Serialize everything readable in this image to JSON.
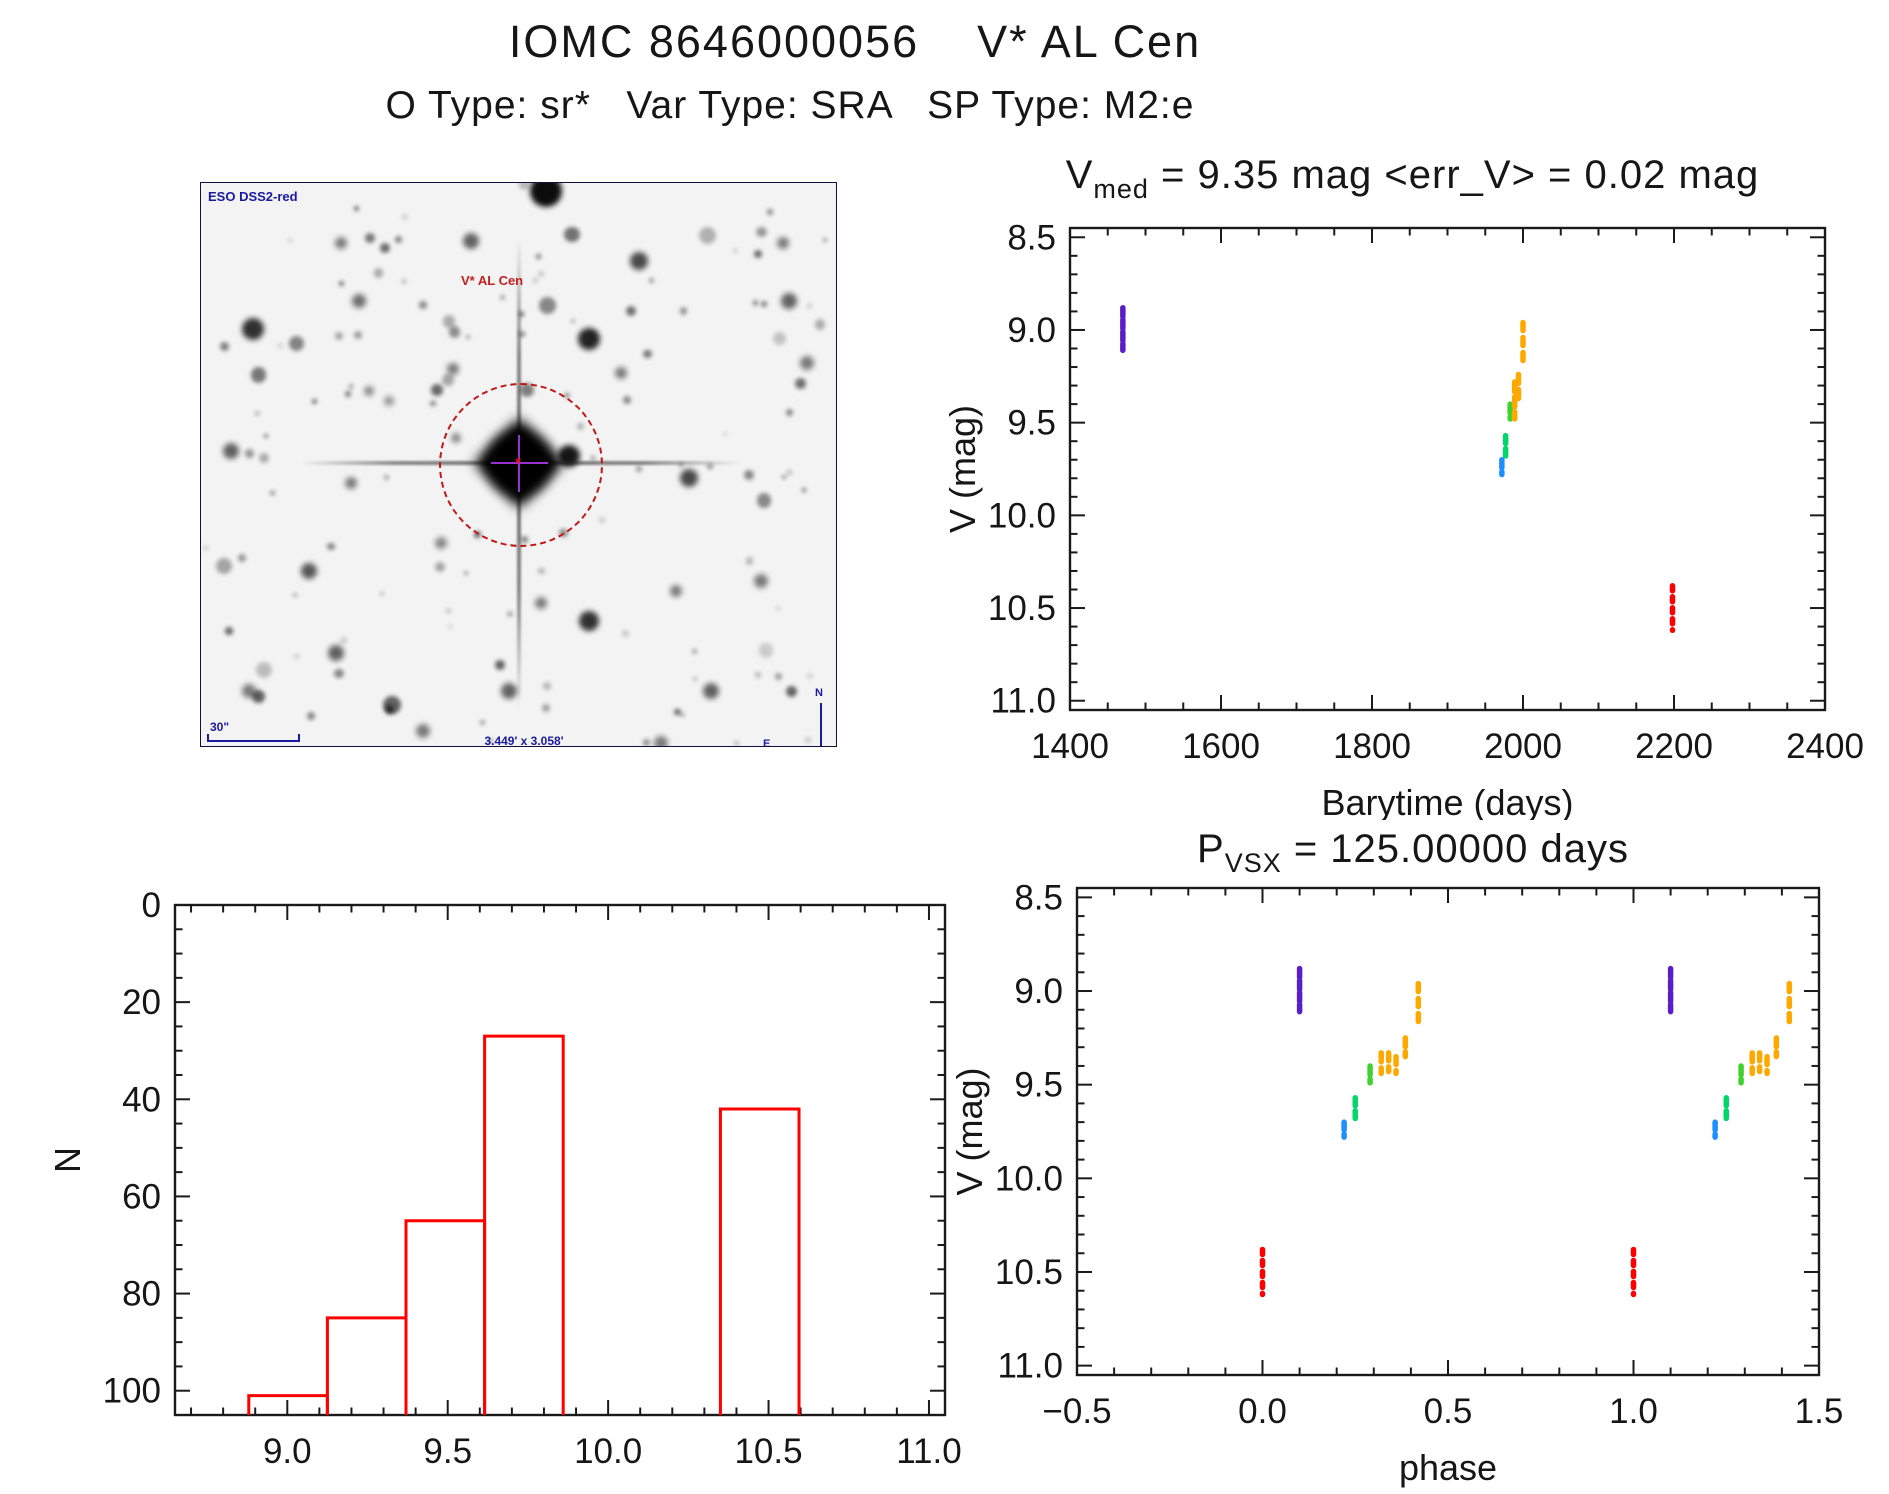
{
  "header": {
    "title": "IOMC 8646000056    V* AL Cen",
    "subtitle": "O Type: sr*   Var Type: SRA   SP Type: M2:e"
  },
  "colors": {
    "axis": "#1a1a1a",
    "red": "#ff0000",
    "purple": "#5a1ec8",
    "blue": "#1e8fff",
    "spring_green": "#00d66a",
    "lime_green": "#3fd22f",
    "orange": "#ffa800"
  },
  "star_image": {
    "survey_label": "ESO DSS2-red",
    "target_label": "V* AL Cen",
    "scale_label": "30\"",
    "size_label": "3.449' x 3.058'",
    "compass": {
      "north": "N",
      "east": "E"
    },
    "seed": 1337,
    "n_speckles": 120,
    "bright_stars": [
      [
        345,
        8,
        16,
        0.95
      ],
      [
        388,
        156,
        11,
        0.85
      ],
      [
        52,
        146,
        11,
        0.8
      ],
      [
        270,
        58,
        8,
        0.6
      ],
      [
        438,
        78,
        9,
        0.7
      ],
      [
        158,
        118,
        7,
        0.55
      ],
      [
        588,
        118,
        8,
        0.6
      ],
      [
        30,
        268,
        8,
        0.6
      ],
      [
        108,
        388,
        8,
        0.65
      ],
      [
        388,
        438,
        10,
        0.8
      ],
      [
        488,
        295,
        9,
        0.7
      ],
      [
        368,
        273,
        11,
        0.9
      ],
      [
        252,
        186,
        6,
        0.5
      ],
      [
        135,
        470,
        8,
        0.6
      ],
      [
        308,
        508,
        8,
        0.6
      ],
      [
        510,
        508,
        8,
        0.6
      ],
      [
        48,
        508,
        7,
        0.5
      ],
      [
        560,
        398,
        7,
        0.5
      ],
      [
        606,
        180,
        7,
        0.5
      ],
      [
        150,
        300,
        6,
        0.5
      ],
      [
        240,
        360,
        6,
        0.45
      ],
      [
        420,
        190,
        6,
        0.5
      ],
      [
        255,
        255,
        5,
        0.45
      ],
      [
        140,
        60,
        6,
        0.5
      ],
      [
        475,
        408,
        6,
        0.5
      ],
      [
        222,
        548,
        7,
        0.5
      ],
      [
        582,
        60,
        6,
        0.5
      ],
      [
        340,
        420,
        6,
        0.5
      ],
      [
        168,
        208,
        5,
        0.45
      ],
      [
        188,
        218,
        5,
        0.4
      ],
      [
        460,
        560,
        7,
        0.5
      ],
      [
        660,
        340,
        6,
        0.5
      ]
    ]
  },
  "chart_data": [
    {
      "id": "lightcurve",
      "type": "scatter",
      "title_pre": "V",
      "title_sub": "med",
      "title_rest": " = 9.35 mag <err_V> = 0.02 mag",
      "xlabel": "Barytime (days)",
      "ylabel": "V (mag)",
      "xlim": [
        1400,
        2400
      ],
      "ylim": [
        8.45,
        11.05
      ],
      "xtick_major": 200,
      "xtick_minor": 50,
      "ytick_major": 0.5,
      "ytick_minor": 0.1,
      "legend": "none",
      "grid": false,
      "clusters": [
        {
          "x": 1470,
          "v": [
            8.88,
            9.11
          ],
          "color_key": "purple",
          "dash": "9 3"
        },
        {
          "x": 1972,
          "v": [
            9.7,
            9.78
          ],
          "color_key": "blue",
          "dash": "8 4"
        },
        {
          "x": 1977,
          "v": [
            9.57,
            9.68
          ],
          "color_key": "spring_green",
          "dash": "8 5"
        },
        {
          "x": 1983,
          "v": [
            9.4,
            9.48
          ],
          "color_key": "lime_green",
          "dash": "9 4"
        },
        {
          "x": 1989,
          "v": [
            9.28,
            9.48
          ],
          "color_key": "orange",
          "dash": "10 5"
        },
        {
          "x": 1994,
          "v": [
            9.24,
            9.4
          ],
          "color_key": "orange",
          "dash": "9 6"
        },
        {
          "x": 2000,
          "v": [
            8.96,
            9.17
          ],
          "color_key": "orange",
          "dash": "8 7"
        },
        {
          "x": 2198,
          "v": [
            10.38,
            10.62
          ],
          "color_key": "red",
          "dash": "5 6"
        }
      ]
    },
    {
      "id": "phased",
      "type": "scatter",
      "title_pre": "P",
      "title_sub": "VSX",
      "title_rest": " = 125.00000 days",
      "xlabel": "phase",
      "ylabel": "V (mag)",
      "xlim": [
        -0.5,
        1.5
      ],
      "ylim": [
        8.45,
        11.05
      ],
      "xtick_major": 0.5,
      "xtick_minor": 0.1,
      "ytick_major": 0.5,
      "ytick_minor": 0.1,
      "x_decimals": 1,
      "phase_repeats": [
        0,
        1
      ],
      "legend": "none",
      "grid": false,
      "clusters": [
        {
          "x": 0.0,
          "v": [
            10.38,
            10.62
          ],
          "color_key": "red",
          "dash": "5 6"
        },
        {
          "x": 0.1,
          "v": [
            8.88,
            9.11
          ],
          "color_key": "purple",
          "dash": "9 3"
        },
        {
          "x": 0.22,
          "v": [
            9.7,
            9.78
          ],
          "color_key": "blue",
          "dash": "8 4"
        },
        {
          "x": 0.25,
          "v": [
            9.57,
            9.68
          ],
          "color_key": "spring_green",
          "dash": "8 5"
        },
        {
          "x": 0.29,
          "v": [
            9.4,
            9.49
          ],
          "color_key": "lime_green",
          "dash": "9 4"
        },
        {
          "x": 0.32,
          "v": [
            9.33,
            9.44
          ],
          "color_key": "orange",
          "dash": "9 6"
        },
        {
          "x": 0.34,
          "v": [
            9.33,
            9.43
          ],
          "color_key": "orange",
          "dash": "8 6"
        },
        {
          "x": 0.36,
          "v": [
            9.35,
            9.44
          ],
          "color_key": "orange",
          "dash": "8 6"
        },
        {
          "x": 0.385,
          "v": [
            9.25,
            9.35
          ],
          "color_key": "orange",
          "dash": "9 5"
        },
        {
          "x": 0.42,
          "v": [
            8.96,
            9.17
          ],
          "color_key": "orange",
          "dash": "8 7"
        }
      ]
    },
    {
      "id": "histogram",
      "type": "histogram",
      "title_pre": "",
      "title_sub": "",
      "title_rest": "",
      "xlabel": "V (mag)",
      "ylabel": "N",
      "xlim": [
        8.65,
        11.05
      ],
      "ylim": [
        0,
        105
      ],
      "xtick_major": 0.5,
      "xtick_minor": 0.1,
      "ytick_major": 20,
      "ytick_minor": 5,
      "x_decimals": 1,
      "bin_edges": [
        8.88,
        9.125,
        9.37,
        9.615,
        9.86,
        10.105,
        10.35,
        10.595
      ],
      "counts": [
        101,
        85,
        65,
        27,
        0,
        0,
        42
      ],
      "bar_color_key": "red"
    }
  ]
}
